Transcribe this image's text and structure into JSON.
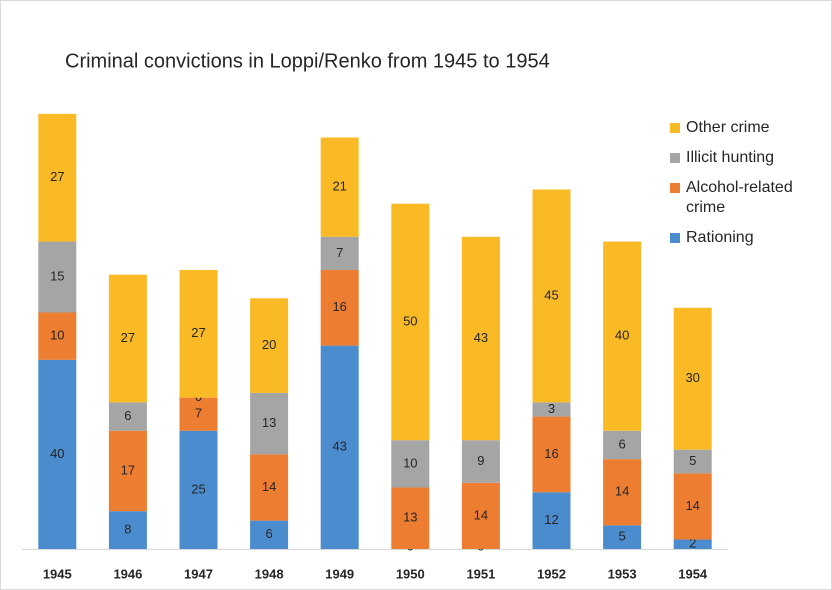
{
  "chart_data": {
    "type": "stacked_bar",
    "title": "Criminal convictions in Loppi/Renko from 1945 to 1954",
    "categories": [
      "1945",
      "1946",
      "1947",
      "1948",
      "1949",
      "1950",
      "1951",
      "1952",
      "1953",
      "1954"
    ],
    "series": [
      {
        "name": "Rationing",
        "color": "#4a8ccd",
        "values": [
          40,
          8,
          25,
          6,
          43,
          0,
          0,
          12,
          5,
          2
        ]
      },
      {
        "name": "Alcohol-related crime",
        "color": "#ed7d31",
        "values": [
          10,
          17,
          7,
          14,
          16,
          13,
          14,
          16,
          14,
          14
        ]
      },
      {
        "name": "Illicit hunting",
        "color": "#a5a5a5",
        "values": [
          15,
          6,
          0,
          13,
          7,
          10,
          9,
          3,
          6,
          5
        ]
      },
      {
        "name": "Other crime",
        "color": "#f9ba26",
        "values": [
          27,
          27,
          27,
          20,
          21,
          50,
          43,
          45,
          40,
          30
        ]
      }
    ],
    "ylim": [
      0,
      100
    ]
  }
}
